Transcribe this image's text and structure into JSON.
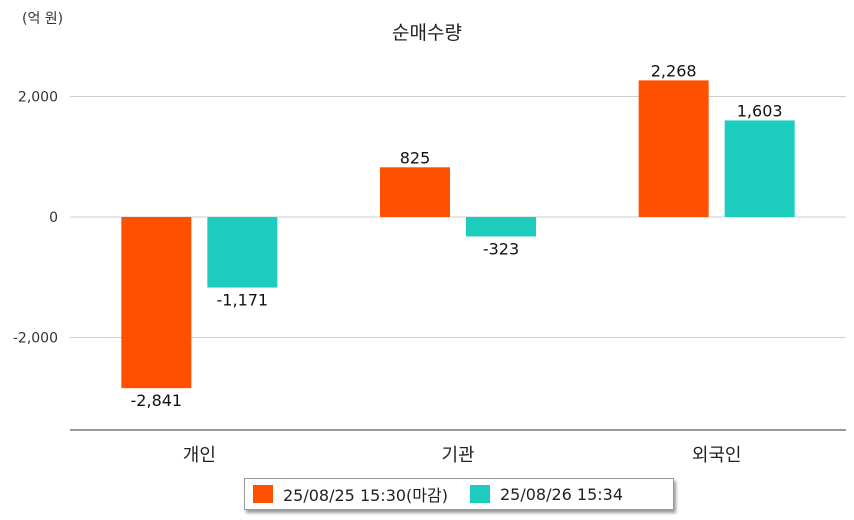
{
  "chart_data": {
    "type": "bar",
    "title": "순매수량",
    "unit_label": "(억 원)",
    "categories": [
      "개인",
      "기관",
      "외국인"
    ],
    "series": [
      {
        "name": "25/08/25 15:30(마감)",
        "color": "#ff5000",
        "values": [
          -2841,
          825,
          2268
        ],
        "labels": [
          "-2,841",
          "825",
          "2,268"
        ]
      },
      {
        "name": "25/08/26 15:34",
        "color": "#1ccdbd",
        "values": [
          -1171,
          -323,
          1603
        ],
        "labels": [
          "-1,171",
          "-323",
          "1,603"
        ]
      }
    ],
    "yticks": [
      2000,
      0,
      -2000
    ],
    "ytick_labels": [
      "2,000",
      "0",
      "-2,000"
    ],
    "ylim": [
      -3500,
      2700
    ],
    "grid": true,
    "legend_position": "bottom"
  }
}
